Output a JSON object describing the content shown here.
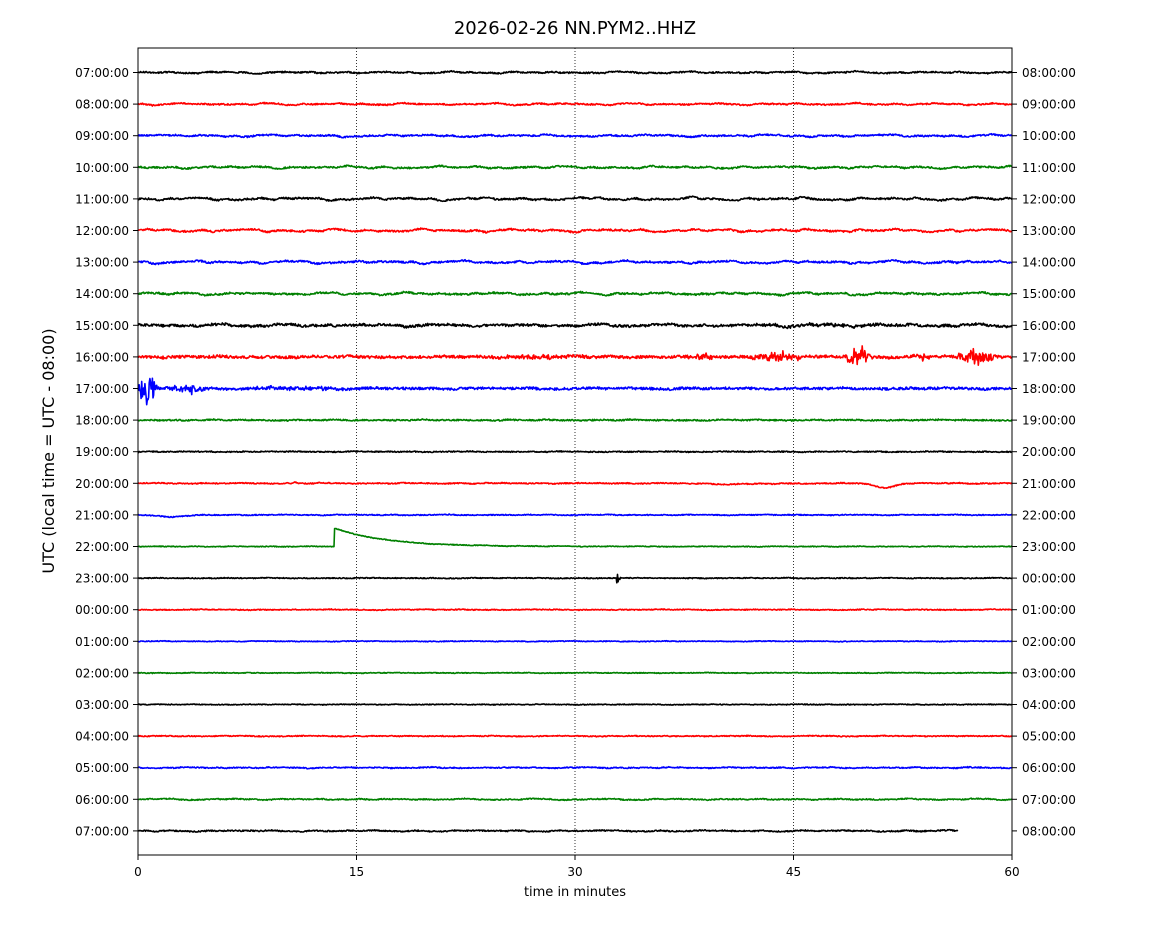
{
  "chart_data": {
    "type": "line",
    "title": "2026-02-26 NN.PYM2..HHZ",
    "xlabel": "time in minutes",
    "ylabel": "UTC (local time = UTC - 08:00)",
    "xlim": [
      0,
      60
    ],
    "x_ticks": [
      0,
      15,
      30,
      45,
      60
    ],
    "grid": "vertical dotted at 15, 30, 45",
    "trace_colors": [
      "#000000",
      "#ff0000",
      "#0000ff",
      "#008000"
    ],
    "left_labels": [
      "07:00:00",
      "08:00:00",
      "09:00:00",
      "10:00:00",
      "11:00:00",
      "12:00:00",
      "13:00:00",
      "14:00:00",
      "15:00:00",
      "16:00:00",
      "17:00:00",
      "18:00:00",
      "19:00:00",
      "20:00:00",
      "21:00:00",
      "22:00:00",
      "23:00:00",
      "00:00:00",
      "01:00:00",
      "02:00:00",
      "03:00:00",
      "04:00:00",
      "05:00:00",
      "06:00:00",
      "07:00:00"
    ],
    "right_labels": [
      "08:00:00",
      "09:00:00",
      "10:00:00",
      "11:00:00",
      "12:00:00",
      "13:00:00",
      "14:00:00",
      "15:00:00",
      "16:00:00",
      "17:00:00",
      "18:00:00",
      "19:00:00",
      "20:00:00",
      "21:00:00",
      "22:00:00",
      "23:00:00",
      "00:00:00",
      "01:00:00",
      "02:00:00",
      "03:00:00",
      "04:00:00",
      "05:00:00",
      "06:00:00",
      "07:00:00",
      "08:00:00"
    ],
    "traces": [
      {
        "noise": 0.18,
        "wander": 0.12
      },
      {
        "noise": 0.18,
        "wander": 0.12
      },
      {
        "noise": 0.2,
        "wander": 0.14
      },
      {
        "noise": 0.2,
        "wander": 0.14
      },
      {
        "noise": 0.22,
        "wander": 0.18
      },
      {
        "noise": 0.22,
        "wander": 0.18
      },
      {
        "noise": 0.22,
        "wander": 0.18
      },
      {
        "noise": 0.22,
        "wander": 0.16
      },
      {
        "noise": 0.3,
        "wander": 0.16,
        "events": [
          {
            "start": 38,
            "end": 60,
            "amp": 0.3
          }
        ]
      },
      {
        "noise": 0.35,
        "wander": 0.08,
        "events": [
          {
            "start": 24,
            "end": 34,
            "amp": 0.55
          },
          {
            "start": 37.5,
            "end": 40.5,
            "amp": 1.1
          },
          {
            "start": 42,
            "end": 47,
            "amp": 1.6
          },
          {
            "start": 48.5,
            "end": 51,
            "amp": 3.2
          },
          {
            "start": 53,
            "end": 55,
            "amp": 1.0
          },
          {
            "start": 56,
            "end": 60,
            "amp": 2.4
          }
        ]
      },
      {
        "noise": 0.3,
        "wander": 0.08,
        "events": [
          {
            "start": 0,
            "end": 1.8,
            "amp": 6.0
          },
          {
            "start": 1.8,
            "end": 6,
            "amp": 1.4
          },
          {
            "start": 6,
            "end": 20,
            "amp": 0.45
          }
        ]
      },
      {
        "noise": 0.18,
        "wander": 0.05
      },
      {
        "noise": 0.14,
        "wander": 0.04
      },
      {
        "noise": 0.14,
        "wander": 0.05,
        "bumps": [
          {
            "at": 10.8,
            "amp": -0.35,
            "width": 0.15
          },
          {
            "at": 51.2,
            "amp": 1.1,
            "width": 0.9
          },
          {
            "at": 41,
            "amp": 0.2,
            "width": 3
          }
        ]
      },
      {
        "noise": 0.12,
        "wander": 0.04,
        "bumps": [
          {
            "at": 2.5,
            "amp": 0.5,
            "width": 1.2
          }
        ]
      },
      {
        "noise": 0.1,
        "wander": 0.03,
        "step": {
          "at": 13.5,
          "depth": 4.6,
          "tau": 3.5
        }
      },
      {
        "noise": 0.12,
        "wander": 0.03,
        "events": [
          {
            "start": 32.8,
            "end": 33.2,
            "amp": 1.8
          }
        ]
      },
      {
        "noise": 0.12,
        "wander": 0.04
      },
      {
        "noise": 0.1,
        "wander": 0.03
      },
      {
        "noise": 0.1,
        "wander": 0.03
      },
      {
        "noise": 0.1,
        "wander": 0.03
      },
      {
        "noise": 0.12,
        "wander": 0.04
      },
      {
        "noise": 0.14,
        "wander": 0.06
      },
      {
        "noise": 0.14,
        "wander": 0.08
      },
      {
        "noise": 0.16,
        "wander": 0.08,
        "end": 56.3
      }
    ]
  }
}
